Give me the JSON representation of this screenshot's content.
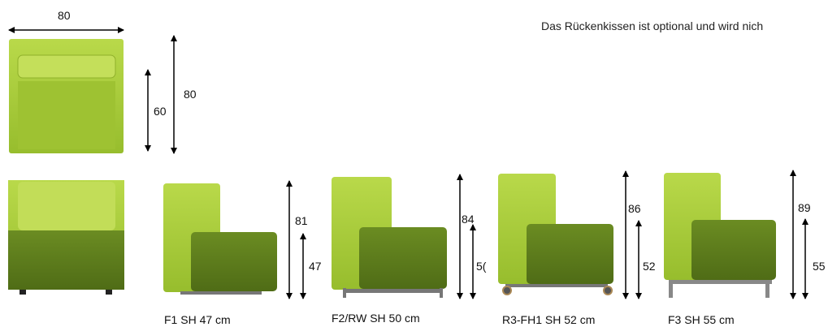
{
  "note": "Das Rückenkissen ist optional und wird nich",
  "top_view": {
    "width": "80",
    "depth": "80",
    "seat_depth": "60"
  },
  "models": [
    {
      "caption": "F1  SH 47 cm",
      "total": "81",
      "seat": "47"
    },
    {
      "caption": "F2/RW  SH 50 cm",
      "total": "84",
      "seat": "5("
    },
    {
      "caption": "R3-FH1  SH 52 cm",
      "total": "86",
      "seat": "52"
    },
    {
      "caption": "F3  SH 55 cm",
      "total": "89",
      "seat": "55"
    }
  ],
  "colors": {
    "light_green": "#a9cc3a",
    "dark_green": "#5e7d1d",
    "frame": "#6e6e6e"
  }
}
